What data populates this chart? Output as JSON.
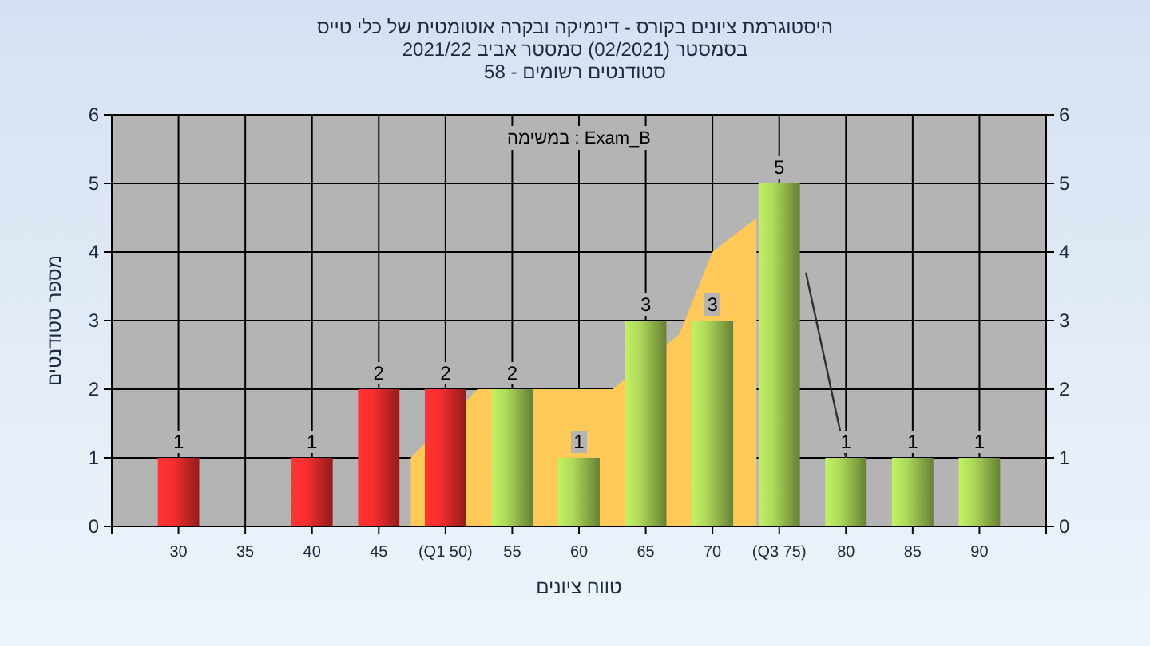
{
  "chart_data": {
    "type": "bar",
    "title": "היסטוגרמת ציונים בקורס - דינמיקה ובקרה אוטומטית של כלי טייס",
    "subtitle": "בסמסטר  (02/2021)  סמסטר אביב 2021/22\nסטודנטים רשומים - 58",
    "xlabel": "טווח ציונים",
    "ylabel": "מספר סטודנטים",
    "annotations": [
      "במשימה : Exam_B"
    ],
    "x": [
      30,
      35,
      40,
      45,
      50,
      55,
      60,
      65,
      70,
      75,
      80,
      85,
      90
    ],
    "series": [
      {
        "type": "area",
        "color": "#ffc957",
        "x": [
          47.4,
          52.4,
          62.5,
          67.5,
          70,
          73.3
        ],
        "values": [
          1,
          2,
          2,
          2.8,
          4,
          4.5
        ]
      },
      {
        "type": "line",
        "color": "#303030",
        "x": [
          77,
          80
        ],
        "values": [
          3.7,
          1
        ]
      },
      {
        "colors": [
          "#e02a2a",
          "#e02a2a",
          "#e02a2a",
          "#e02a2a",
          "#e02a2a",
          "#9cc450",
          "#9cc450",
          "#9cc450",
          "#9cc450",
          "#9cc450",
          "#9cc450",
          "#9cc450",
          "#9cc450"
        ],
        "values": [
          1,
          0,
          1,
          2,
          2,
          2,
          1,
          3,
          3,
          5,
          1,
          1,
          1
        ],
        "value_labels": [
          "1",
          null,
          "1",
          "2",
          "2",
          "2",
          "1",
          "3",
          "3",
          "5",
          "1",
          "1",
          "1"
        ]
      }
    ],
    "xlim": [
      25,
      95
    ],
    "xticks": [
      {
        "value": 25,
        "label": null
      },
      30,
      35,
      40,
      45,
      {
        "value": 50,
        "label": "(Q1 50)"
      },
      55,
      60,
      65,
      70,
      {
        "value": 75,
        "label": "(Q3 75)"
      },
      80,
      85,
      90,
      {
        "value": 95,
        "label": null
      }
    ],
    "ylim": [
      0,
      6
    ],
    "yticks": [
      0,
      1,
      2,
      3,
      4,
      5,
      6
    ],
    "y2lim": [
      0,
      6
    ],
    "y2ticks": [
      0,
      1,
      2,
      3,
      4,
      5,
      6
    ],
    "grid": true
  }
}
